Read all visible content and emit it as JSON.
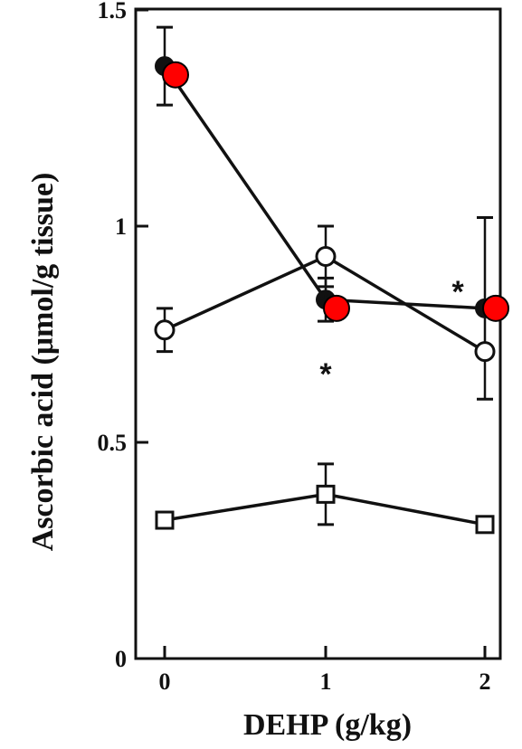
{
  "chart_data": {
    "type": "line",
    "x": [
      0,
      1,
      2
    ],
    "x_tick_labels": [
      "0",
      "1",
      "2"
    ],
    "y_tick_labels": [
      "0",
      "0.5",
      "1",
      "1.5"
    ],
    "xlabel": "DEHP (g/kg)",
    "ylabel": "Ascorbic acid (μmol/g tissue)",
    "ylim": [
      0,
      1.5
    ],
    "grid": false,
    "series": [
      {
        "marker": "filled-circle",
        "values": [
          1.37,
          0.83,
          0.81
        ],
        "err_up": [
          0.09,
          0.05,
          0
        ],
        "err_down": [
          0.09,
          0.05,
          0
        ]
      },
      {
        "marker": "open-circle",
        "values": [
          0.76,
          0.93,
          0.71
        ],
        "err_up": [
          0.05,
          0.07,
          0.31
        ],
        "err_down": [
          0.05,
          0.07,
          0.11
        ]
      },
      {
        "marker": "open-square",
        "values": [
          0.32,
          0.38,
          0.31
        ],
        "err_up": [
          0,
          0.07,
          0
        ],
        "err_down": [
          0,
          0.07,
          0
        ]
      }
    ],
    "overlay_points": {
      "color": "#ff0000",
      "values": [
        1.35,
        0.81,
        0.81
      ]
    },
    "annotations": [
      {
        "text": "*",
        "x": 1,
        "y": 0.84
      },
      {
        "text": "*",
        "x": 1,
        "y": 0.68
      },
      {
        "text": "*",
        "x": 1.83,
        "y": 0.87
      }
    ]
  }
}
